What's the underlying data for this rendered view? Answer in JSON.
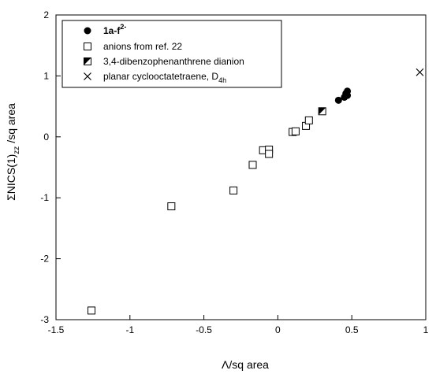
{
  "chart_data": {
    "type": "scatter",
    "xlabel": "Λ/sq area",
    "ylabel_main": "ΣNICS(1)",
    "ylabel_sub": "zz",
    "ylabel_tail": "/sq area",
    "xlim": [
      -1.5,
      1.0
    ],
    "ylim": [
      -3,
      2
    ],
    "xticks": [
      -1.5,
      -1,
      -0.5,
      0,
      0.5,
      1
    ],
    "xtick_labels": [
      "-1.5",
      "-1",
      "-0.5",
      "0",
      "0.5",
      "1"
    ],
    "yticks": [
      -3,
      -2,
      -1,
      0,
      1,
      2
    ],
    "ytick_labels": [
      "-3",
      "-2",
      "-1",
      "0",
      "1",
      "2"
    ],
    "grid": false,
    "legend_position": "top-left",
    "series": [
      {
        "name": "1a-f",
        "name_sup": "2-",
        "marker": "filled-circle",
        "bold": true,
        "points": [
          [
            0.41,
            0.6
          ],
          [
            0.45,
            0.65
          ],
          [
            0.47,
            0.68
          ],
          [
            0.46,
            0.71
          ],
          [
            0.47,
            0.75
          ]
        ]
      },
      {
        "name": "anions from ref. 22",
        "marker": "open-square",
        "points": [
          [
            -1.26,
            -2.85
          ],
          [
            -0.72,
            -1.14
          ],
          [
            -0.3,
            -0.88
          ],
          [
            -0.17,
            -0.46
          ],
          [
            -0.1,
            -0.22
          ],
          [
            -0.06,
            -0.21
          ],
          [
            -0.06,
            -0.28
          ],
          [
            0.1,
            0.08
          ],
          [
            0.12,
            0.09
          ],
          [
            0.19,
            0.18
          ],
          [
            0.21,
            0.27
          ]
        ]
      },
      {
        "name": "3,4-dibenzophenanthrene dianion",
        "marker": "half-square",
        "points": [
          [
            0.3,
            0.42
          ]
        ]
      },
      {
        "name": "planar cyclooctatetraene, D",
        "name_sub": "4h",
        "marker": "x",
        "points": [
          [
            0.96,
            1.06
          ]
        ]
      }
    ]
  }
}
